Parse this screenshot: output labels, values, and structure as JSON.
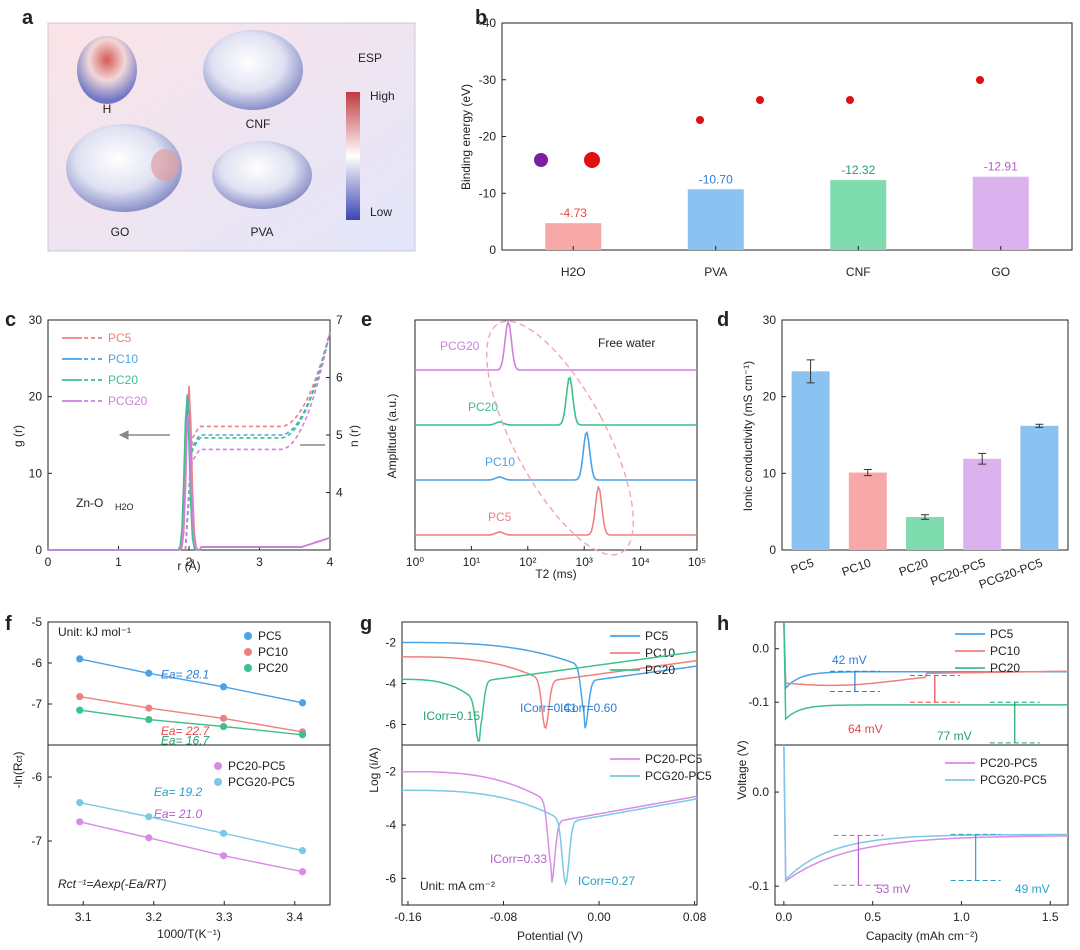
{
  "colors": {
    "pc5": "#f08080",
    "pc10": "#4aa3e8",
    "pc20": "#3cc18a",
    "pcg20": "#d07ee0",
    "pc20pc5": "#d98ce6",
    "pcg20pc5": "#7cc8e6",
    "h2o_bar": "#f7a8a8",
    "pva_bar": "#8cc2f2",
    "cnf_bar": "#7fdcae",
    "go_bar": "#dcb2ee",
    "lbl_red": "#e8464a",
    "lbl_blue": "#2a7fd6",
    "lbl_green": "#21a26a",
    "lbl_purple": "#b45fcc",
    "lbl_cyan": "#2aa0c8"
  },
  "panel_labels": [
    "a",
    "b",
    "c",
    "d",
    "e",
    "f",
    "g",
    "h"
  ],
  "panel_a": {
    "molecules": [
      "H2O",
      "CNF",
      "GO",
      "PVA"
    ],
    "legend_title": "ESP",
    "legend_high": "High",
    "legend_low": "Low"
  },
  "chart_data": [
    {
      "id": "b",
      "type": "bar",
      "categories": [
        "H2O",
        "PVA",
        "CNF",
        "GO"
      ],
      "values": [
        -4.73,
        -10.7,
        -12.32,
        -12.91
      ],
      "value_labels": [
        "-4.73",
        "-10.70",
        "-12.32",
        "-12.91"
      ],
      "ylabel": "Binding energy (eV)",
      "ylim": [
        0,
        -40
      ],
      "yticks": [
        "0",
        "-10",
        "-20",
        "-30",
        "-40"
      ]
    },
    {
      "id": "c",
      "type": "line",
      "xlabel": "r (Å)",
      "ylabel": "g (r)",
      "y2label": "n (r)",
      "xlim": [
        0,
        4
      ],
      "ylim": [
        0,
        30
      ],
      "y2lim": [
        3,
        7
      ],
      "xticks": [
        "0",
        "1",
        "2",
        "3",
        "4"
      ],
      "yticks": [
        "0",
        "10",
        "20",
        "30"
      ],
      "y2ticks": [
        "4",
        "5",
        "6",
        "7"
      ],
      "annotation": "Zn-O",
      "annotation_sub": "H2O",
      "series": [
        {
          "name": "PC5",
          "peak_r": 2.0,
          "peak_g": 21.4,
          "plateau_n": 5.15
        },
        {
          "name": "PC10",
          "peak_r": 1.98,
          "peak_g": 20.5,
          "plateau_n": 5.0
        },
        {
          "name": "PC20",
          "peak_r": 1.97,
          "peak_g": 20.0,
          "plateau_n": 4.95
        },
        {
          "name": "PCG20",
          "peak_r": 1.99,
          "peak_g": 18.5,
          "plateau_n": 4.75
        }
      ]
    },
    {
      "id": "d",
      "type": "scatter",
      "xlabel": "1000/T(K⁻¹)",
      "ylabel": "-ln(R",
      "ylabel_sub": "ct",
      "ylabel_end": ")",
      "x": [
        3.095,
        3.193,
        3.299,
        3.411
      ],
      "xticks": [
        "3.1",
        "3.2",
        "3.3",
        "3.4"
      ],
      "top": {
        "ylim": [
          -5,
          -8
        ],
        "yticks": [
          "-5",
          "-6",
          "-7"
        ],
        "unit": "Unit: kJ mol⁻¹",
        "series": [
          {
            "name": "PC5",
            "values": [
              -5.9,
              -6.25,
              -6.58,
              -6.97
            ],
            "ea": "Ea= 28.1"
          },
          {
            "name": "PC10",
            "values": [
              -6.82,
              -7.1,
              -7.35,
              -7.68
            ],
            "ea": "Ea= 22.7"
          },
          {
            "name": "PC20",
            "values": [
              -7.15,
              -7.38,
              -7.55,
              -7.75
            ],
            "ea": "Ea= 16.7"
          }
        ]
      },
      "bottom": {
        "ylim": [
          -5.5,
          -8
        ],
        "yticks": [
          "-6",
          "-7"
        ],
        "formula": "Rct⁻¹=Aexp(-Ea/RT)",
        "series": [
          {
            "name": "PC20-PC5",
            "values": [
              -6.7,
              -6.95,
              -7.23,
              -7.48
            ],
            "ea": "Ea= 21.0"
          },
          {
            "name": "PCG20-PC5",
            "values": [
              -6.4,
              -6.62,
              -6.88,
              -7.15
            ],
            "ea": "Ea= 19.2"
          }
        ]
      }
    },
    {
      "id": "e",
      "type": "line",
      "xlabel": "T2 (ms)",
      "ylabel": "Amplitude (a.u.)",
      "xscale": "log",
      "xlim": [
        1,
        100000
      ],
      "xticks": [
        "10⁰",
        "10¹",
        "10²",
        "10³",
        "10⁴",
        "10⁵"
      ],
      "annotation": "Free water",
      "series": [
        {
          "name": "PCG20",
          "peak_T2": 45
        },
        {
          "name": "PC20",
          "peak_T2": 550
        },
        {
          "name": "PC10",
          "peak_T2": 1100
        },
        {
          "name": "PC5",
          "peak_T2": 1800
        }
      ]
    },
    {
      "id": "f",
      "type": "line",
      "xlabel": "Potential (V)",
      "ylabel": "Log (i/A)",
      "xlim": [
        -0.16,
        0.08
      ],
      "xticks": [
        "-0.16",
        "-0.08",
        "0.00",
        "0.08"
      ],
      "top": {
        "ylim": [
          -7,
          -1
        ],
        "yticks": [
          "-2",
          "-4",
          "-6"
        ],
        "series": [
          {
            "name": "PC5",
            "ecorr": -0.012,
            "icorr": "ICorr=0.60"
          },
          {
            "name": "PC10",
            "ecorr": -0.045,
            "icorr": "ICorr=0.41"
          },
          {
            "name": "PC20",
            "ecorr": -0.1,
            "icorr": "ICorr=0.15"
          }
        ]
      },
      "bottom": {
        "ylim": [
          -7,
          -1
        ],
        "yticks": [
          "-2",
          "-4",
          "-6"
        ],
        "unit": "Unit: mA cm⁻²",
        "series": [
          {
            "name": "PC20-PC5",
            "ecorr": -0.04,
            "icorr": "ICorr=0.33"
          },
          {
            "name": "PCG20-PC5",
            "ecorr": -0.028,
            "icorr": "ICorr=0.27"
          }
        ]
      }
    },
    {
      "id": "g",
      "type": "bar",
      "categories": [
        "PC5",
        "PC10",
        "PC20",
        "PC20-PC5",
        "PCG20-PC5"
      ],
      "values": [
        23.3,
        10.1,
        4.3,
        11.9,
        16.2
      ],
      "errors": [
        1.5,
        0.4,
        0.3,
        0.7,
        0.2
      ],
      "ylabel": "Ionic conductivity (mS cm⁻¹)",
      "ylim": [
        0,
        30
      ],
      "yticks": [
        "0",
        "10",
        "20",
        "30"
      ]
    },
    {
      "id": "h",
      "type": "line",
      "xlabel": "Capacity (mAh cm⁻²)",
      "ylabel": "Voltage (V)",
      "xlim": [
        -0.05,
        1.6
      ],
      "xticks": [
        "0.0",
        "0.5",
        "1.0",
        "1.5"
      ],
      "top": {
        "ylim": [
          -0.18,
          0.05
        ],
        "yticks": [
          "0.0",
          "-0.1"
        ],
        "series": [
          {
            "name": "PC5",
            "plateau": -0.043,
            "overpotential": "42 mV"
          },
          {
            "name": "PC10",
            "plateau": -0.05,
            "overpotential": "64 mV"
          },
          {
            "name": "PC20",
            "plateau": -0.105,
            "overpotential": "77 mV"
          }
        ]
      },
      "bottom": {
        "ylim": [
          -0.12,
          0.05
        ],
        "yticks": [
          "0.0",
          "-0.1"
        ],
        "series": [
          {
            "name": "PC20-PC5",
            "plateau": -0.046,
            "overpotential": "53 mV"
          },
          {
            "name": "PCG20-PC5",
            "plateau": -0.045,
            "overpotential": "49 mV"
          }
        ]
      }
    }
  ]
}
